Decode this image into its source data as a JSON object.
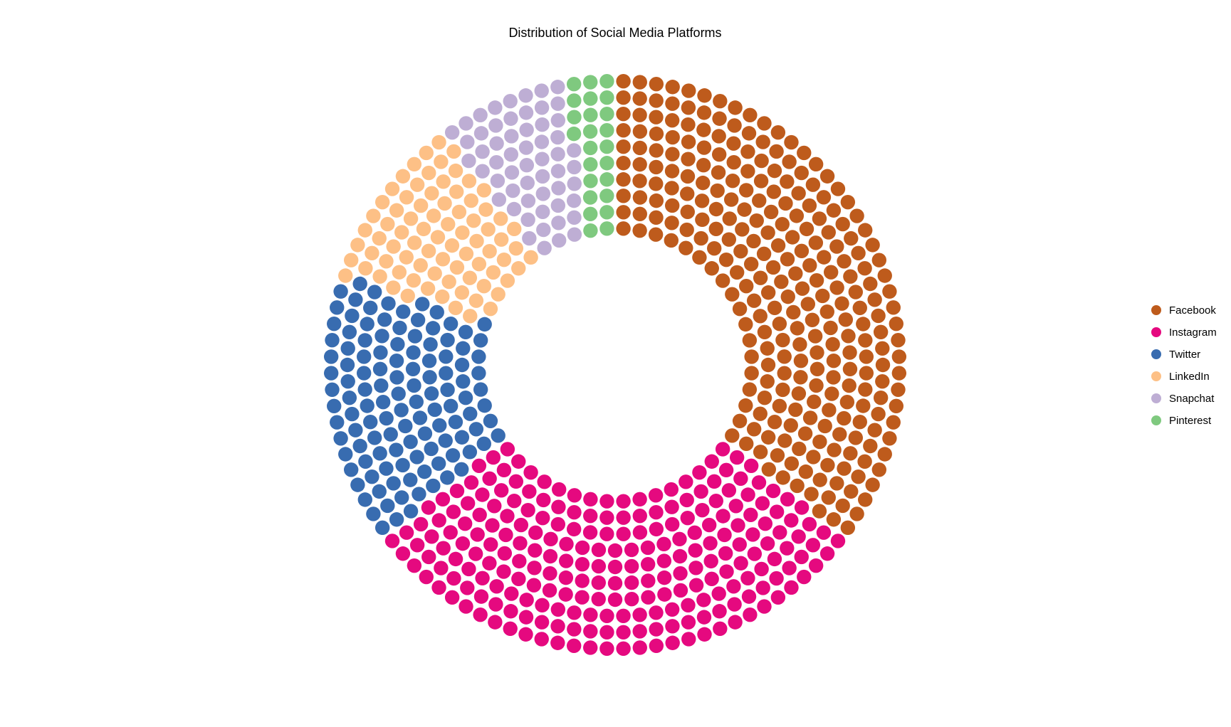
{
  "chart_data": {
    "type": "pie",
    "variant": "dot-donut",
    "title": "Distribution of Social Media Platforms",
    "legend_position": "right",
    "grid": false,
    "series": [
      {
        "name": "Facebook",
        "value": 35,
        "color": "#be5b1c"
      },
      {
        "name": "Instagram",
        "value": 30,
        "color": "#e5097f"
      },
      {
        "name": "Twitter",
        "value": 15,
        "color": "#386cb0"
      },
      {
        "name": "LinkedIn",
        "value": 10,
        "color": "#fdc086"
      },
      {
        "name": "Snapchat",
        "value": 7,
        "color": "#beaed4"
      },
      {
        "name": "Pinterest",
        "value": 3,
        "color": "#7fc97f"
      }
    ]
  }
}
